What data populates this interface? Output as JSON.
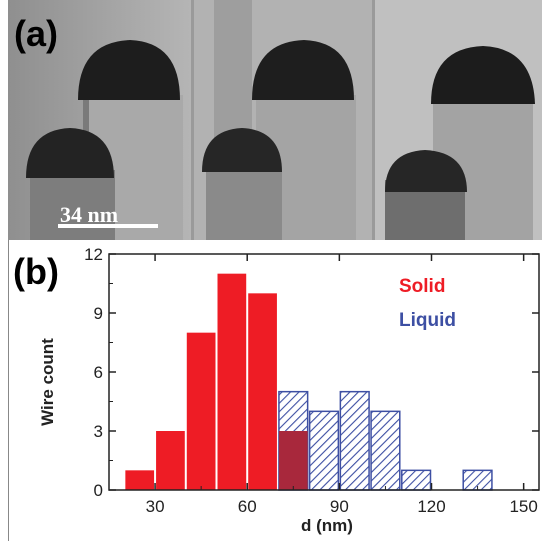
{
  "panel_a": {
    "label": "(a)",
    "scale_bar_text": "34 nm",
    "image_description_icons": [
      "nanowire-micrograph-icon"
    ]
  },
  "panel_b": {
    "label": "(b)"
  },
  "colors": {
    "solid": "#ee1c25",
    "liquid": "#3d4fa3",
    "overlap": "#a8283c"
  },
  "chart_data": {
    "type": "bar",
    "xlabel": "d (nm)",
    "ylabel": "Wire count",
    "xlim": [
      15,
      155
    ],
    "ylim": [
      0,
      12
    ],
    "xticks": [
      30,
      60,
      90,
      120,
      150
    ],
    "yticks": [
      0,
      3,
      6,
      9,
      12
    ],
    "bin_width": 10,
    "legend_position": "top-right",
    "series": [
      {
        "name": "Solid",
        "pattern": "solid",
        "x": [
          25,
          35,
          45,
          55,
          65,
          75
        ],
        "values": [
          1,
          3,
          8,
          11,
          10,
          3
        ]
      },
      {
        "name": "Liquid",
        "pattern": "hatched",
        "x": [
          75,
          85,
          95,
          105,
          115,
          135
        ],
        "values": [
          5,
          4,
          5,
          4,
          1,
          1
        ]
      }
    ]
  }
}
